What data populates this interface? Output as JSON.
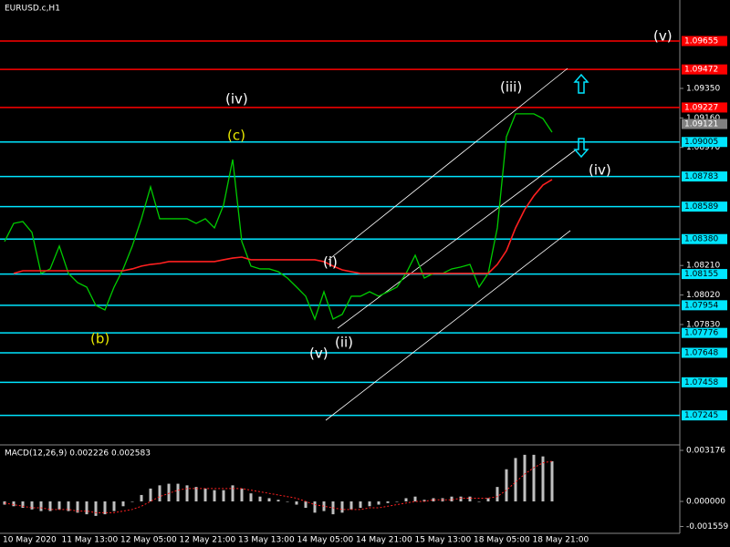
{
  "chart_data": [
    {
      "type": "line",
      "title": "EURUSD.c,H1",
      "xtick_labels": [
        "10 May 2020",
        "11 May 13:00",
        "12 May 05:00",
        "12 May 21:00",
        "13 May 13:00",
        "14 May 05:00",
        "14 May 21:00",
        "15 May 13:00",
        "18 May 05:00",
        "18 May 21:00"
      ],
      "series": [
        {
          "name": "EURUSD.c",
          "color": "#00cc00",
          "values": [
            1.08364,
            1.08481,
            1.08493,
            1.08423,
            1.08159,
            1.08188,
            1.08335,
            1.08159,
            1.081,
            1.08071,
            1.07953,
            1.07924,
            1.08071,
            1.08188,
            1.08335,
            1.08511,
            1.08716,
            1.08511,
            1.08511,
            1.08511,
            1.08511,
            1.08481,
            1.08511,
            1.08452,
            1.08599,
            1.08892,
            1.08364,
            1.08206,
            1.08188,
            1.08188,
            1.0817,
            1.08129,
            1.08071,
            1.08012,
            1.07865,
            1.08041,
            1.07865,
            1.07895,
            1.08012,
            1.08012,
            1.08041,
            1.08012,
            1.08041,
            1.08071,
            1.08159,
            1.08276,
            1.08129,
            1.08159,
            1.08159,
            1.08188,
            1.082,
            1.08217,
            1.08071,
            1.08159,
            1.08452,
            1.09039,
            1.09186,
            1.09186,
            1.09186,
            1.09156,
            1.09068
          ]
        },
        {
          "color": "#ff2020",
          "values": [
            null,
            1.08159,
            1.08176,
            1.08176,
            1.08176,
            1.08176,
            1.08176,
            1.08176,
            1.08176,
            1.08176,
            1.08176,
            1.08176,
            1.08176,
            1.08176,
            1.08188,
            1.08206,
            1.08217,
            1.08223,
            1.08235,
            1.08235,
            1.08235,
            1.08235,
            1.08235,
            1.08235,
            1.08247,
            1.08258,
            1.08264,
            1.08247,
            1.08247,
            1.08247,
            1.08247,
            1.08247,
            1.08247,
            1.08247,
            1.08247,
            1.08235,
            1.08206,
            1.08182,
            1.0817,
            1.08159,
            1.08159,
            1.08159,
            1.08159,
            1.08159,
            1.08159,
            1.08159,
            1.08159,
            1.08159,
            1.08159,
            1.08159,
            1.08159,
            1.08159,
            1.08159,
            1.08159,
            1.08217,
            1.08305,
            1.08452,
            1.0857,
            1.08658,
            1.08728,
            1.08763
          ]
        }
      ],
      "ylim": [
        1.07061,
        1.09919
      ],
      "yticks": [
        {
          "value": 1.0935,
          "label": "1.09350"
        },
        {
          "value": 1.0916,
          "label": "1.09160"
        },
        {
          "value": 1.0897,
          "label": "1.08970"
        },
        {
          "value": 1.0821,
          "label": "1.08210"
        },
        {
          "value": 1.0802,
          "label": "1.08020"
        },
        {
          "value": 1.0783,
          "label": "1.07830"
        }
      ],
      "levels": [
        {
          "value": 1.09655,
          "label": "1.09655",
          "color": "#ff0000"
        },
        {
          "value": 1.09472,
          "label": "1.09472",
          "color": "#ff0000"
        },
        {
          "value": 1.09227,
          "label": "1.09227",
          "color": "#ff0000"
        },
        {
          "value": 1.09005,
          "label": "1.09005",
          "color": "#00e5ff"
        },
        {
          "value": 1.08783,
          "label": "1.08783",
          "color": "#00e5ff"
        },
        {
          "value": 1.08589,
          "label": "1.08589",
          "color": "#00e5ff"
        },
        {
          "value": 1.0838,
          "label": "1.08380",
          "color": "#00e5ff"
        },
        {
          "value": 1.08155,
          "label": "1.08155",
          "color": "#00e5ff"
        },
        {
          "value": 1.07954,
          "label": "1.07954",
          "color": "#00e5ff"
        },
        {
          "value": 1.07776,
          "label": "1.07776",
          "color": "#00e5ff"
        },
        {
          "value": 1.07648,
          "label": "1.07648",
          "color": "#00e5ff"
        },
        {
          "value": 1.07458,
          "label": "1.07458",
          "color": "#00e5ff"
        },
        {
          "value": 1.07245,
          "label": "1.07245",
          "color": "#00e5ff"
        }
      ],
      "current_price": {
        "value": 1.09121,
        "label": "1.09121"
      },
      "annotations": [
        "(v)",
        "(iii)",
        "(iv)",
        "(c)",
        "(iv)",
        "(i)",
        "(ii)",
        "(v)",
        "(b)"
      ]
    },
    {
      "type": "bar",
      "title": "MACD(12,26,9) 0.002226 0.002583",
      "series": [
        {
          "color": "#c0c0c0",
          "values": [
            -0.0002,
            -0.0003,
            -0.0004,
            -0.0005,
            -0.0006,
            -0.0006,
            -0.0005,
            -0.0006,
            -0.0007,
            -0.0008,
            -0.0009,
            -0.0008,
            -0.0006,
            -0.0003,
            0.0,
            0.0004,
            0.0008,
            0.001,
            0.0011,
            0.0011,
            0.001,
            0.0009,
            0.0008,
            0.0007,
            0.0007,
            0.001,
            0.0008,
            0.0005,
            0.0003,
            0.0002,
            0.0001,
            0.0,
            -0.0002,
            -0.0004,
            -0.0007,
            -0.0006,
            -0.0008,
            -0.0007,
            -0.0005,
            -0.0004,
            -0.0003,
            -0.0002,
            -0.0001,
            0.0,
            0.0002,
            0.0003,
            0.0001,
            0.0002,
            0.0002,
            0.0003,
            0.0003,
            0.0003,
            0.0,
            0.0002,
            0.0009,
            0.002,
            0.0027,
            0.0029,
            0.0029,
            0.0028,
            0.0025
          ]
        },
        {
          "color": "#ff2020",
          "values": [
            -0.0001,
            -0.0002,
            -0.0003,
            -0.0004,
            -0.0004,
            -0.0005,
            -0.0005,
            -0.0005,
            -0.0006,
            -0.0006,
            -0.0007,
            -0.0007,
            -0.0007,
            -0.0006,
            -0.0005,
            -0.0003,
            0.0,
            0.0003,
            0.0005,
            0.0007,
            0.0008,
            0.0008,
            0.0008,
            0.0008,
            0.0008,
            0.0008,
            0.0008,
            0.0007,
            0.0006,
            0.0005,
            0.0004,
            0.0003,
            0.0002,
            0.0,
            -0.0002,
            -0.0003,
            -0.0004,
            -0.0005,
            -0.0005,
            -0.0005,
            -0.0004,
            -0.0004,
            -0.0003,
            -0.0002,
            -0.0001,
            0.0,
            0.0,
            0.0001,
            0.0001,
            0.0001,
            0.0002,
            0.0002,
            0.0002,
            0.0002,
            0.0003,
            0.0007,
            0.0012,
            0.0017,
            0.0021,
            0.0024,
            0.0025
          ]
        }
      ],
      "ylim": [
        -0.001985,
        0.003403
      ],
      "yticks": [
        0.003176,
        {
          "value": 0,
          "label": "0.000000"
        },
        -0.001559
      ]
    }
  ]
}
